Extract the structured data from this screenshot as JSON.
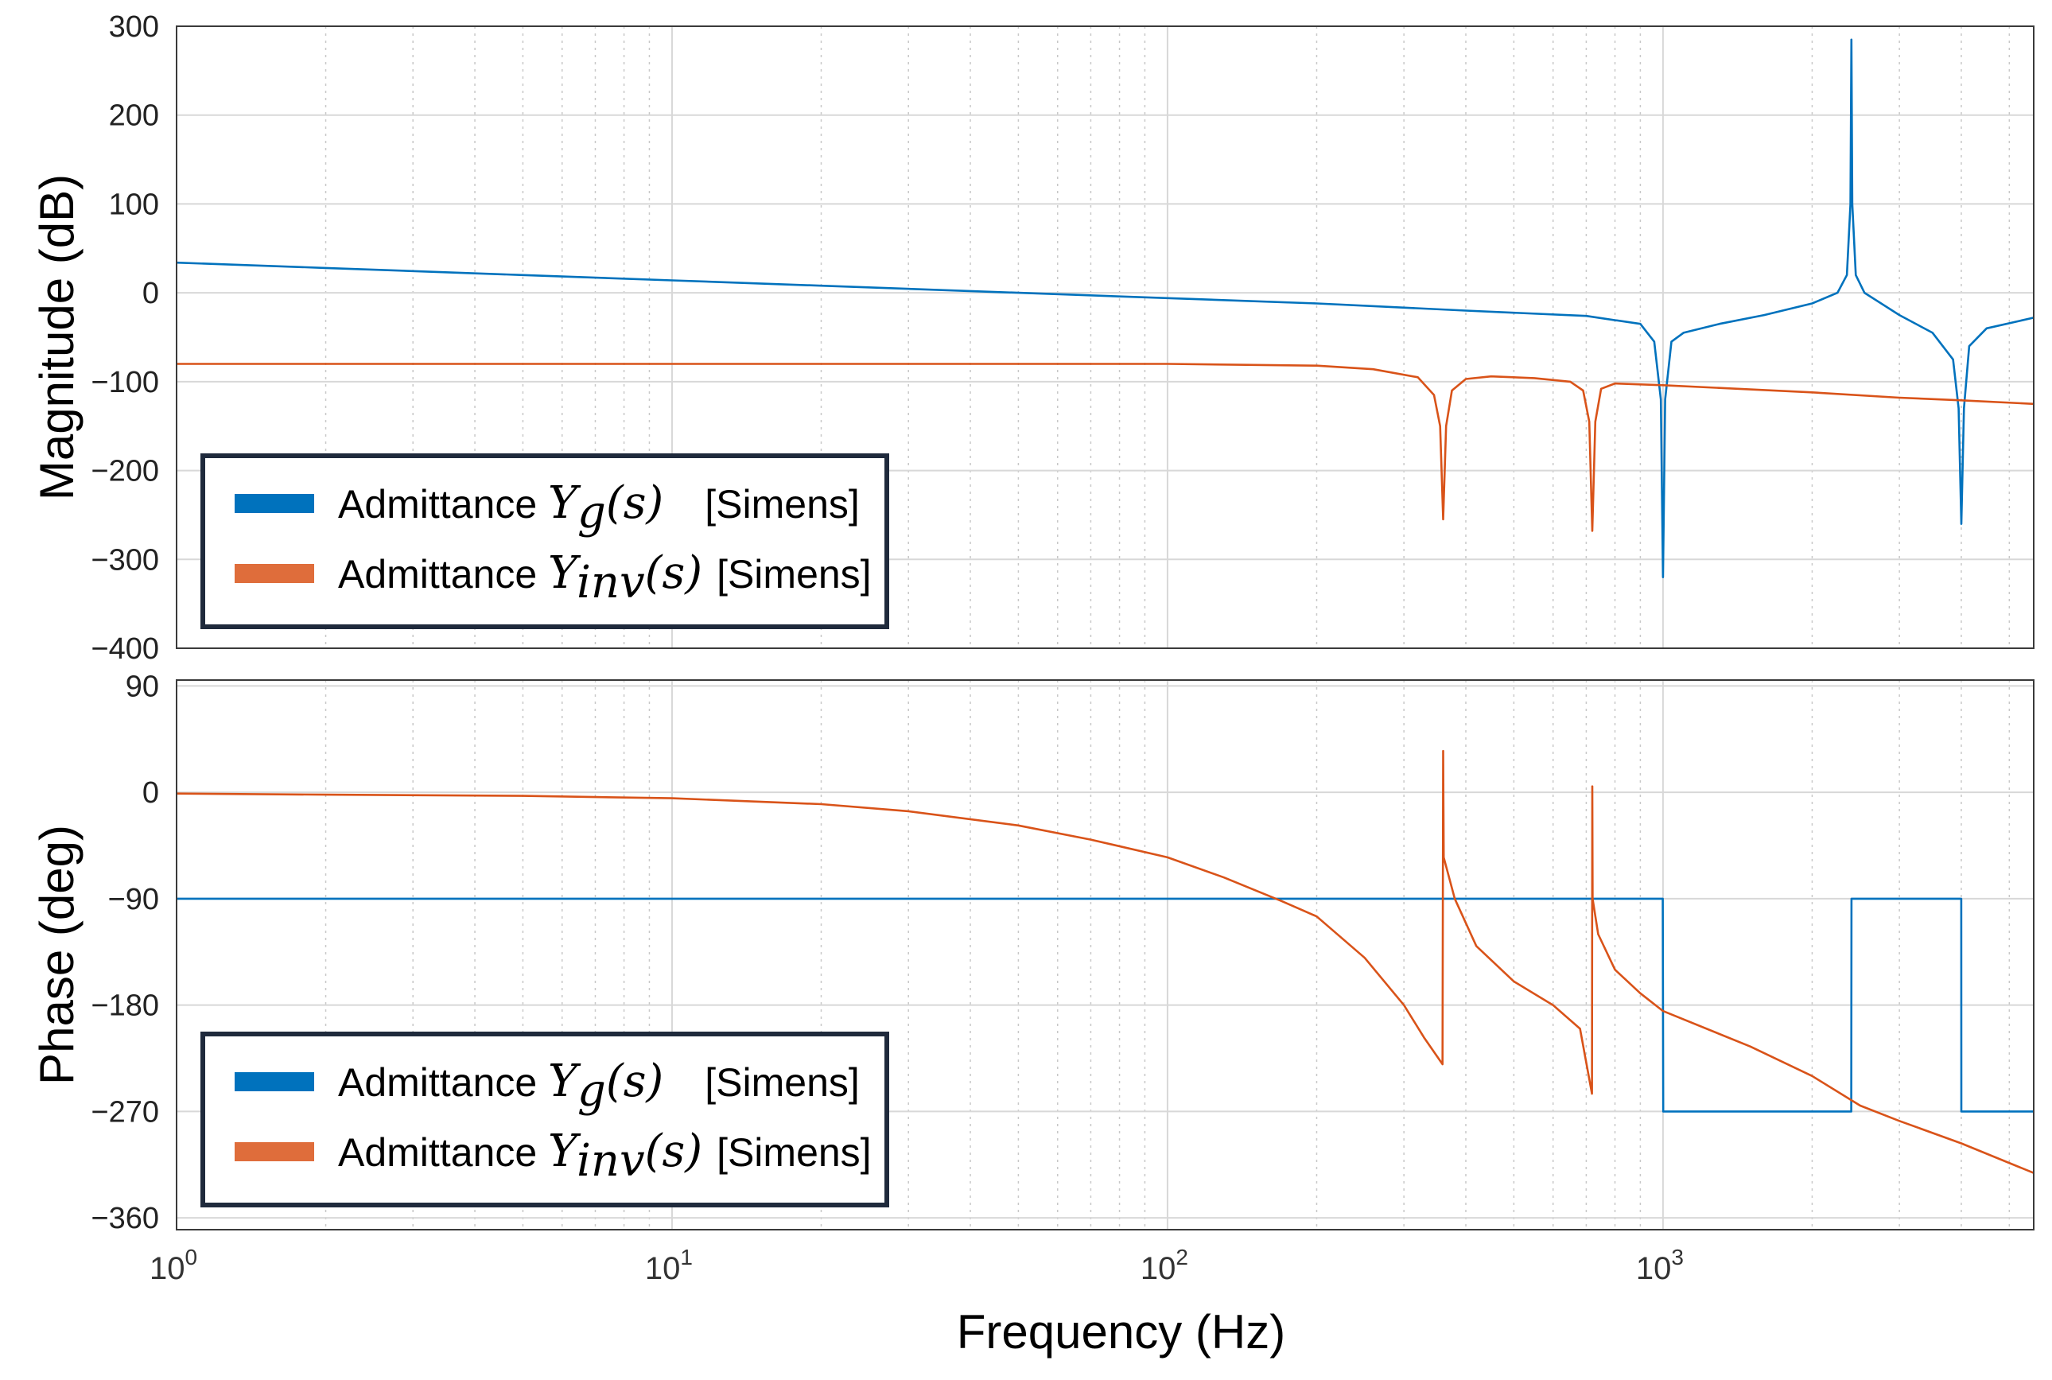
{
  "chart_data": [
    {
      "type": "line",
      "name": "magnitude",
      "ylabel": "Magnitude (dB)",
      "xscale": "log",
      "xlim": [
        1,
        5600
      ],
      "ylim": [
        -400,
        300
      ],
      "yticks": [
        300,
        200,
        100,
        0,
        -100,
        -200,
        -300,
        -400
      ],
      "ytick_labels": [
        "300",
        "200",
        "100",
        "0",
        "−100",
        "−200",
        "−300",
        "−400"
      ],
      "grid": true,
      "legend_position": "bottom-left",
      "series": [
        {
          "name": "Admittance Y_g(s) [Simens]",
          "color": "#0072BD",
          "points": [
            [
              1,
              34
            ],
            [
              2,
              28
            ],
            [
              5,
              20
            ],
            [
              10,
              14
            ],
            [
              20,
              8
            ],
            [
              50,
              0
            ],
            [
              100,
              -6
            ],
            [
              200,
              -12
            ],
            [
              400,
              -20
            ],
            [
              700,
              -26
            ],
            [
              900,
              -35
            ],
            [
              960,
              -55
            ],
            [
              990,
              -120
            ],
            [
              1000,
              -320
            ],
            [
              1010,
              -120
            ],
            [
              1040,
              -55
            ],
            [
              1100,
              -45
            ],
            [
              1300,
              -35
            ],
            [
              1600,
              -25
            ],
            [
              2000,
              -12
            ],
            [
              2250,
              0
            ],
            [
              2350,
              20
            ],
            [
              2390,
              100
            ],
            [
              2400,
              285
            ],
            [
              2410,
              100
            ],
            [
              2450,
              20
            ],
            [
              2550,
              0
            ],
            [
              3000,
              -25
            ],
            [
              3500,
              -45
            ],
            [
              3850,
              -75
            ],
            [
              3950,
              -130
            ],
            [
              4000,
              -260
            ],
            [
              4050,
              -130
            ],
            [
              4150,
              -60
            ],
            [
              4500,
              -40
            ],
            [
              5600,
              -28
            ]
          ]
        },
        {
          "name": "Admittance Y_inv(s) [Simens]",
          "color": "#D95319",
          "points": [
            [
              1,
              -80
            ],
            [
              10,
              -80
            ],
            [
              100,
              -80
            ],
            [
              200,
              -82
            ],
            [
              260,
              -86
            ],
            [
              320,
              -95
            ],
            [
              345,
              -115
            ],
            [
              355,
              -150
            ],
            [
              360,
              -255
            ],
            [
              365,
              -150
            ],
            [
              375,
              -110
            ],
            [
              400,
              -97
            ],
            [
              450,
              -94
            ],
            [
              550,
              -96
            ],
            [
              650,
              -100
            ],
            [
              690,
              -110
            ],
            [
              710,
              -145
            ],
            [
              720,
              -268
            ],
            [
              730,
              -145
            ],
            [
              750,
              -108
            ],
            [
              800,
              -102
            ],
            [
              1000,
              -104
            ],
            [
              2000,
              -112
            ],
            [
              3000,
              -118
            ],
            [
              4000,
              -121
            ],
            [
              5600,
              -125
            ]
          ]
        }
      ],
      "legend": [
        {
          "prefix": "Admittance ",
          "symbol": "Y",
          "subscript": "g",
          "argument": "(s)",
          "unit": "[Simens]"
        },
        {
          "prefix": "Admittance ",
          "symbol": "Y",
          "subscript": "inv",
          "argument": "(s)",
          "unit": "[Simens]"
        }
      ]
    },
    {
      "type": "line",
      "name": "phase",
      "ylabel": "Phase (deg)",
      "xlabel": "Frequency  (Hz)",
      "xscale": "log",
      "xlim": [
        1,
        5600
      ],
      "ylim": [
        -370,
        95
      ],
      "yticks": [
        90,
        0,
        -90,
        -180,
        -270,
        -360
      ],
      "ytick_labels": [
        "90",
        "0",
        "−90",
        "−180",
        "−270",
        "−360"
      ],
      "xticks": [
        1,
        10,
        100,
        1000
      ],
      "xtick_labels": [
        {
          "base": "10",
          "exp": "0"
        },
        {
          "base": "10",
          "exp": "1"
        },
        {
          "base": "10",
          "exp": "2"
        },
        {
          "base": "10",
          "exp": "3"
        }
      ],
      "grid": true,
      "legend_position": "bottom-left",
      "series": [
        {
          "name": "Admittance Y_g(s) [Simens]",
          "color": "#0072BD",
          "points": [
            [
              1,
              -90
            ],
            [
              999,
              -90
            ],
            [
              1001,
              -270
            ],
            [
              2399,
              -270
            ],
            [
              2401,
              -90
            ],
            [
              3999,
              -90
            ],
            [
              4001,
              -270
            ],
            [
              5600,
              -270
            ]
          ]
        },
        {
          "name": "Admittance Y_inv(s) [Simens]",
          "color": "#D95319",
          "points": [
            [
              1,
              -1
            ],
            [
              2,
              -2
            ],
            [
              5,
              -3
            ],
            [
              10,
              -5
            ],
            [
              20,
              -10
            ],
            [
              30,
              -16
            ],
            [
              50,
              -28
            ],
            [
              70,
              -40
            ],
            [
              100,
              -55
            ],
            [
              130,
              -72
            ],
            [
              170,
              -92
            ],
            [
              200,
              -105
            ],
            [
              250,
              -140
            ],
            [
              300,
              -180
            ],
            [
              330,
              -208
            ],
            [
              359,
              -230
            ],
            [
              360,
              35
            ],
            [
              361,
              -55
            ],
            [
              380,
              -90
            ],
            [
              420,
              -130
            ],
            [
              500,
              -160
            ],
            [
              600,
              -180
            ],
            [
              680,
              -200
            ],
            [
              719,
              -255
            ],
            [
              720,
              5
            ],
            [
              721,
              -90
            ],
            [
              740,
              -120
            ],
            [
              800,
              -150
            ],
            [
              900,
              -170
            ],
            [
              1000,
              -185
            ],
            [
              1500,
              -215
            ],
            [
              2000,
              -240
            ],
            [
              2500,
              -265
            ],
            [
              3000,
              -278
            ],
            [
              4000,
              -297
            ],
            [
              5600,
              -322
            ]
          ]
        }
      ],
      "legend": [
        {
          "prefix": "Admittance ",
          "symbol": "Y",
          "subscript": "g",
          "argument": "(s)",
          "unit": "[Simens]"
        },
        {
          "prefix": "Admittance ",
          "symbol": "Y",
          "subscript": "inv",
          "argument": "(s)",
          "unit": "[Simens]"
        }
      ]
    }
  ]
}
